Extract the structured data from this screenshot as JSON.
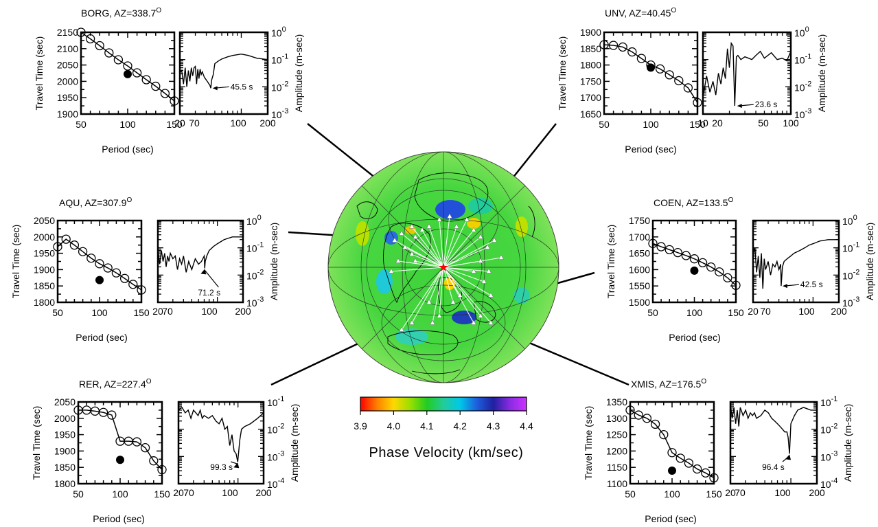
{
  "colors": {
    "curve": "#000000",
    "map_land_outline": "#000000",
    "epicenter": "#ff0000",
    "stations": "#ffffff",
    "scale": [
      "#ff0000",
      "#ff8000",
      "#ffd800",
      "#9adf00",
      "#22cc22",
      "#22cc99",
      "#00c8e8",
      "#1d5fdd",
      "#2020a0",
      "#8a2be2",
      "#cc33ff"
    ]
  },
  "map": {
    "colorbar_label": "Phase Velocity (km/sec)",
    "colorbar_ticks": [
      "3.9",
      "4.0",
      "4.1",
      "4.2",
      "4.3",
      "4.4"
    ],
    "colorbar_range": [
      3.9,
      4.4
    ]
  },
  "chart_data": [
    {
      "type": "line",
      "station": "BORG",
      "az": "338.7",
      "title_prefix": "BORG, AZ=",
      "travel": {
        "xlabel": "Period (sec)",
        "ylabel": "Travel Time (sec)",
        "xlim": [
          50,
          150
        ],
        "ylim": [
          1900,
          2150
        ],
        "xticks": [
          "50",
          "100",
          "150"
        ],
        "yticks": [
          "1900",
          "1950",
          "2000",
          "2050",
          "2100",
          "2150"
        ],
        "x": [
          50,
          60,
          70,
          80,
          90,
          100,
          110,
          120,
          130,
          140,
          150
        ],
        "y": [
          2150,
          2130,
          2109,
          2087,
          2066,
          2047,
          2026,
          2005,
          1985,
          1963,
          1940
        ],
        "measured": {
          "x": 100,
          "y": 2022
        }
      },
      "amp": {
        "ylabel": "Amplitude (m-sec)",
        "xlim": [
          20,
          200
        ],
        "ylog": [
          -3,
          0
        ],
        "xticks": [
          "20",
          "70",
          "100",
          "200"
        ],
        "yticks": [
          "-3",
          "-2",
          "-1",
          "0"
        ],
        "x": [
          20,
          21,
          22,
          23,
          24,
          25,
          26,
          27,
          28,
          29,
          30,
          31,
          32,
          33,
          34,
          35,
          36,
          38,
          40,
          42,
          44,
          45,
          46,
          48,
          50,
          55,
          60,
          70,
          80,
          100,
          120,
          150,
          200
        ],
        "y": [
          -1.5,
          -1.4,
          -1.9,
          -1.3,
          -2.0,
          -1.4,
          -1.8,
          -1.3,
          -1.6,
          -1.3,
          -1.25,
          -1.9,
          -1.35,
          -1.7,
          -1.35,
          -1.55,
          -1.45,
          -1.65,
          -1.75,
          -1.85,
          -1.95,
          -2.05,
          -1.75,
          -1.55,
          -1.15,
          -1.05,
          -0.98,
          -0.9,
          -0.85,
          -0.8,
          -0.85,
          -0.95,
          -1.0
        ],
        "annotation": {
          "label": "45.5 s",
          "x": 45.5,
          "y": -2.05
        }
      }
    },
    {
      "type": "line",
      "station": "UNV",
      "az": "40.45",
      "title_prefix": "UNV, AZ=",
      "travel": {
        "xlabel": "Period (sec)",
        "ylabel": "Travel Time (sec)",
        "xlim": [
          50,
          150
        ],
        "ylim": [
          1650,
          1900
        ],
        "xticks": [
          "50",
          "100",
          "150"
        ],
        "yticks": [
          "1650",
          "1700",
          "1750",
          "1800",
          "1850",
          "1900"
        ],
        "x": [
          50,
          60,
          70,
          80,
          90,
          100,
          110,
          120,
          130,
          140,
          150
        ],
        "y": [
          1862,
          1860,
          1855,
          1840,
          1820,
          1800,
          1788,
          1770,
          1752,
          1730,
          1685
        ],
        "measured": {
          "x": 100,
          "y": 1792
        }
      },
      "amp": {
        "ylabel": "Amplitude (m-sec)",
        "xlim": [
          10,
          100
        ],
        "ylog": [
          -3,
          0
        ],
        "xticks": [
          "10",
          "20",
          "50",
          "100"
        ],
        "yticks": [
          "-3",
          "-2",
          "-1",
          "0"
        ],
        "x": [
          10,
          11,
          12,
          13,
          14,
          15,
          16,
          17,
          18,
          19,
          20,
          21,
          22,
          23,
          24,
          25,
          27,
          30,
          33,
          36,
          40,
          45,
          50,
          60,
          70,
          80,
          90,
          100
        ],
        "y": [
          -2.4,
          -1.6,
          -2.2,
          -1.8,
          -2.3,
          -1.5,
          -1.9,
          -1.3,
          -1.7,
          -0.6,
          -1.3,
          -0.4,
          -0.5,
          -2.7,
          -0.9,
          -0.85,
          -1.0,
          -0.9,
          -0.95,
          -1.0,
          -0.85,
          -0.7,
          -0.95,
          -0.75,
          -1.0,
          -0.95,
          -1.05,
          -0.7
        ],
        "annotation": {
          "label": "23.6 s",
          "x": 23.6,
          "y": -2.7
        }
      }
    },
    {
      "type": "line",
      "station": "AQU",
      "az": "307.9",
      "title_prefix": "AQU, AZ=",
      "travel": {
        "xlabel": "Period (sec)",
        "ylabel": "Travel Time (sec)",
        "xlim": [
          50,
          150
        ],
        "ylim": [
          1800,
          2050
        ],
        "xticks": [
          "50",
          "100",
          "150"
        ],
        "yticks": [
          "1800",
          "1850",
          "1900",
          "1950",
          "2000",
          "2050"
        ],
        "x": [
          50,
          60,
          70,
          80,
          90,
          100,
          110,
          120,
          130,
          140,
          150
        ],
        "y": [
          1970,
          1993,
          1975,
          1955,
          1935,
          1918,
          1905,
          1890,
          1873,
          1855,
          1838
        ],
        "measured": {
          "x": 100,
          "y": 1868
        }
      },
      "amp": {
        "ylabel": "Amplitude (m-sec)",
        "xlim": [
          20,
          200
        ],
        "ylog": [
          -3,
          0
        ],
        "xticks": [
          "20",
          "70",
          "100",
          "200"
        ],
        "yticks": [
          "-3",
          "-2",
          "-1",
          "0"
        ],
        "x": [
          20,
          21,
          22,
          23,
          24,
          25,
          26,
          27,
          28,
          30,
          32,
          34,
          36,
          38,
          40,
          43,
          46,
          50,
          55,
          60,
          65,
          70,
          71,
          72,
          75,
          80,
          90,
          100,
          120,
          150,
          200
        ],
        "y": [
          -1.0,
          -1.6,
          -1.1,
          -1.5,
          -1.2,
          -1.7,
          -1.3,
          -1.5,
          -1.2,
          -1.4,
          -1.3,
          -1.8,
          -1.4,
          -1.6,
          -1.3,
          -1.9,
          -1.5,
          -1.8,
          -1.4,
          -1.6,
          -1.5,
          -1.3,
          -1.75,
          -1.5,
          -1.3,
          -1.1,
          -0.95,
          -0.85,
          -0.7,
          -0.6,
          -0.6
        ],
        "annotation": {
          "label": "71.2 s",
          "x": 71.2,
          "y": -1.75
        }
      }
    },
    {
      "type": "line",
      "station": "COEN",
      "az": "133.5",
      "title_prefix": "COEN, AZ=",
      "travel": {
        "xlabel": "Period (sec)",
        "ylabel": "Travel Time (sec)",
        "xlim": [
          50,
          150
        ],
        "ylim": [
          1500,
          1750
        ],
        "xticks": [
          "50",
          "100",
          "150"
        ],
        "yticks": [
          "1500",
          "1550",
          "1600",
          "1650",
          "1700",
          "1750"
        ],
        "x": [
          50,
          60,
          70,
          80,
          90,
          100,
          110,
          120,
          130,
          140,
          150
        ],
        "y": [
          1680,
          1670,
          1661,
          1652,
          1643,
          1633,
          1621,
          1608,
          1593,
          1575,
          1552
        ],
        "measured": {
          "x": 100,
          "y": 1597
        }
      },
      "amp": {
        "ylabel": "Amplitude (m-sec)",
        "xlim": [
          20,
          200
        ],
        "ylog": [
          -3,
          0
        ],
        "xticks": [
          "20",
          "70",
          "100",
          "200"
        ],
        "yticks": [
          "-3",
          "-2",
          "-1",
          "0"
        ],
        "x": [
          20,
          21,
          22,
          23,
          24,
          25,
          26,
          27,
          28,
          30,
          32,
          34,
          36,
          38,
          40,
          42,
          42.5,
          44,
          46,
          50,
          55,
          60,
          70,
          80,
          90,
          100,
          120,
          150,
          200
        ],
        "y": [
          -1.2,
          -1.0,
          -1.9,
          -1.3,
          -2.1,
          -1.2,
          -2.5,
          -1.4,
          -1.8,
          -1.5,
          -2.0,
          -1.6,
          -1.7,
          -1.5,
          -1.8,
          -1.6,
          -2.4,
          -1.7,
          -1.5,
          -1.4,
          -1.3,
          -1.2,
          -1.1,
          -1.0,
          -0.9,
          -0.85,
          -0.75,
          -0.7,
          -0.7
        ],
        "annotation": {
          "label": "42.5 s",
          "x": 42.5,
          "y": -2.4
        }
      }
    },
    {
      "type": "line",
      "station": "RER",
      "az": "227.4",
      "title_prefix": "RER, AZ=",
      "travel": {
        "xlabel": "Period (sec)",
        "ylabel": "Travel Time (sec)",
        "xlim": [
          50,
          150
        ],
        "ylim": [
          1800,
          2050
        ],
        "xticks": [
          "50",
          "100",
          "150"
        ],
        "yticks": [
          "1800",
          "1850",
          "1900",
          "1950",
          "2000",
          "2050"
        ],
        "x": [
          50,
          60,
          70,
          80,
          90,
          100,
          110,
          120,
          130,
          140,
          150
        ],
        "y": [
          2025,
          2025,
          2022,
          2018,
          2010,
          1930,
          1930,
          1928,
          1910,
          1870,
          1843
        ],
        "measured": {
          "x": 100,
          "y": 1873
        }
      },
      "amp": {
        "ylabel": "Amplitude (m-sec)",
        "xlim": [
          20,
          200
        ],
        "ylog": [
          -4,
          -1
        ],
        "xticks": [
          "20",
          "70",
          "100",
          "200"
        ],
        "yticks": [
          "-4",
          "-3",
          "-2",
          "-1"
        ],
        "x": [
          20,
          22,
          24,
          26,
          28,
          30,
          32,
          34,
          36,
          38,
          40,
          45,
          50,
          55,
          60,
          65,
          70,
          75,
          80,
          85,
          90,
          95,
          99.3,
          105,
          110,
          120,
          140,
          170,
          200
        ],
        "y": [
          -1.3,
          -1.2,
          -1.4,
          -1.3,
          -1.6,
          -1.3,
          -1.4,
          -1.5,
          -1.3,
          -1.6,
          -1.5,
          -1.6,
          -1.5,
          -1.7,
          -1.8,
          -1.6,
          -2.0,
          -1.9,
          -2.6,
          -2.2,
          -2.8,
          -2.9,
          -3.2,
          -2.4,
          -2.0,
          -1.9,
          -1.8,
          -1.6,
          -1.4
        ],
        "annotation": {
          "label": "99.3 s",
          "x": 99.3,
          "y": -3.2
        }
      }
    },
    {
      "type": "line",
      "station": "XMIS",
      "az": "176.5",
      "title_prefix": "XMIS, AZ=",
      "travel": {
        "xlabel": "Period (sec)",
        "ylabel": "Travel Time (sec)",
        "xlim": [
          50,
          150
        ],
        "ylim": [
          1100,
          1350
        ],
        "xticks": [
          "50",
          "100",
          "150"
        ],
        "yticks": [
          "1100",
          "1150",
          "1200",
          "1250",
          "1300",
          "1350"
        ],
        "x": [
          50,
          60,
          70,
          80,
          90,
          100,
          110,
          120,
          130,
          140,
          150
        ],
        "y": [
          1325,
          1310,
          1300,
          1282,
          1250,
          1195,
          1178,
          1163,
          1145,
          1133,
          1118
        ],
        "measured": {
          "x": 100,
          "y": 1140
        }
      },
      "amp": {
        "ylabel": "Amplitude (m-sec)",
        "xlim": [
          20,
          200
        ],
        "ylog": [
          -4,
          -1
        ],
        "xticks": [
          "20",
          "70",
          "100",
          "200"
        ],
        "yticks": [
          "-4",
          "-3",
          "-2",
          "-1"
        ],
        "x": [
          20,
          21,
          22,
          23,
          24,
          25,
          26,
          28,
          30,
          32,
          34,
          36,
          38,
          40,
          45,
          50,
          55,
          60,
          65,
          70,
          75,
          80,
          85,
          90,
          93,
          96.4,
          100,
          110,
          120,
          140,
          170,
          200
        ],
        "y": [
          -1.1,
          -1.6,
          -1.2,
          -1.8,
          -1.3,
          -1.9,
          -1.2,
          -1.5,
          -1.3,
          -1.6,
          -1.4,
          -1.5,
          -1.4,
          -1.6,
          -1.5,
          -1.3,
          -1.4,
          -1.6,
          -1.7,
          -1.8,
          -1.9,
          -2.0,
          -2.1,
          -2.1,
          -2.3,
          -2.9,
          -1.8,
          -1.5,
          -1.3,
          -1.2,
          -1.3,
          -1.3
        ],
        "annotation": {
          "label": "96.4 s",
          "x": 96.4,
          "y": -2.9
        }
      }
    }
  ]
}
